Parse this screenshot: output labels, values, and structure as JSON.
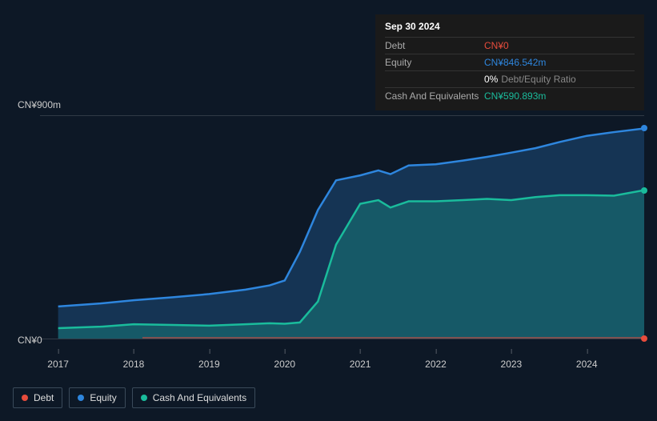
{
  "tooltip": {
    "date": "Sep 30 2024",
    "rows": [
      {
        "label": "Debt",
        "value": "CN¥0",
        "cls": "val-debt"
      },
      {
        "label": "Equity",
        "value": "CN¥846.542m",
        "cls": "val-equity"
      },
      {
        "label": "",
        "value": "0%",
        "suffix": "Debt/Equity Ratio",
        "cls": "val-ratio"
      },
      {
        "label": "Cash And Equivalents",
        "value": "CN¥590.893m",
        "cls": "val-cash"
      }
    ]
  },
  "chart": {
    "type": "area",
    "y_max_label": "CN¥900m",
    "y_min_label": "CN¥0",
    "y_max": 900,
    "y_min": 0,
    "background_color": "#0d1826",
    "x_labels": [
      "2017",
      "2018",
      "2019",
      "2020",
      "2021",
      "2022",
      "2023",
      "2024"
    ],
    "x_positions_pct": [
      3,
      15.5,
      28,
      40.5,
      53,
      65.5,
      78,
      90.5
    ],
    "series": {
      "equity": {
        "label": "Equity",
        "color": "#2e86de",
        "fill": "rgba(46,134,222,0.25)",
        "points": [
          [
            3,
            130
          ],
          [
            10,
            142
          ],
          [
            15.5,
            155
          ],
          [
            22,
            167
          ],
          [
            28,
            180
          ],
          [
            34,
            198
          ],
          [
            38,
            215
          ],
          [
            40.5,
            235
          ],
          [
            43,
            350
          ],
          [
            46,
            520
          ],
          [
            49,
            640
          ],
          [
            53,
            660
          ],
          [
            56,
            680
          ],
          [
            58,
            665
          ],
          [
            61,
            700
          ],
          [
            65.5,
            705
          ],
          [
            70,
            720
          ],
          [
            74,
            735
          ],
          [
            78,
            752
          ],
          [
            82,
            770
          ],
          [
            86,
            795
          ],
          [
            90.5,
            820
          ],
          [
            95,
            835
          ],
          [
            100,
            850
          ]
        ]
      },
      "cash": {
        "label": "Cash And Equivalents",
        "color": "#1abc9c",
        "fill": "rgba(26,188,156,0.28)",
        "points": [
          [
            3,
            42
          ],
          [
            10,
            48
          ],
          [
            15.5,
            58
          ],
          [
            22,
            55
          ],
          [
            28,
            52
          ],
          [
            34,
            58
          ],
          [
            38,
            62
          ],
          [
            40.5,
            60
          ],
          [
            43,
            65
          ],
          [
            46,
            150
          ],
          [
            49,
            380
          ],
          [
            53,
            545
          ],
          [
            56,
            560
          ],
          [
            58,
            530
          ],
          [
            61,
            555
          ],
          [
            65.5,
            555
          ],
          [
            70,
            560
          ],
          [
            74,
            565
          ],
          [
            78,
            560
          ],
          [
            82,
            572
          ],
          [
            86,
            580
          ],
          [
            90.5,
            580
          ],
          [
            95,
            578
          ],
          [
            100,
            600
          ]
        ]
      },
      "debt": {
        "label": "Debt",
        "color": "#e74c3c",
        "end_value": 0
      }
    },
    "legend": [
      {
        "key": "debt",
        "label": "Debt",
        "dotcls": "debt"
      },
      {
        "key": "equity",
        "label": "Equity",
        "dotcls": "equity"
      },
      {
        "key": "cash",
        "label": "Cash And Equivalents",
        "dotcls": "cash"
      }
    ]
  }
}
